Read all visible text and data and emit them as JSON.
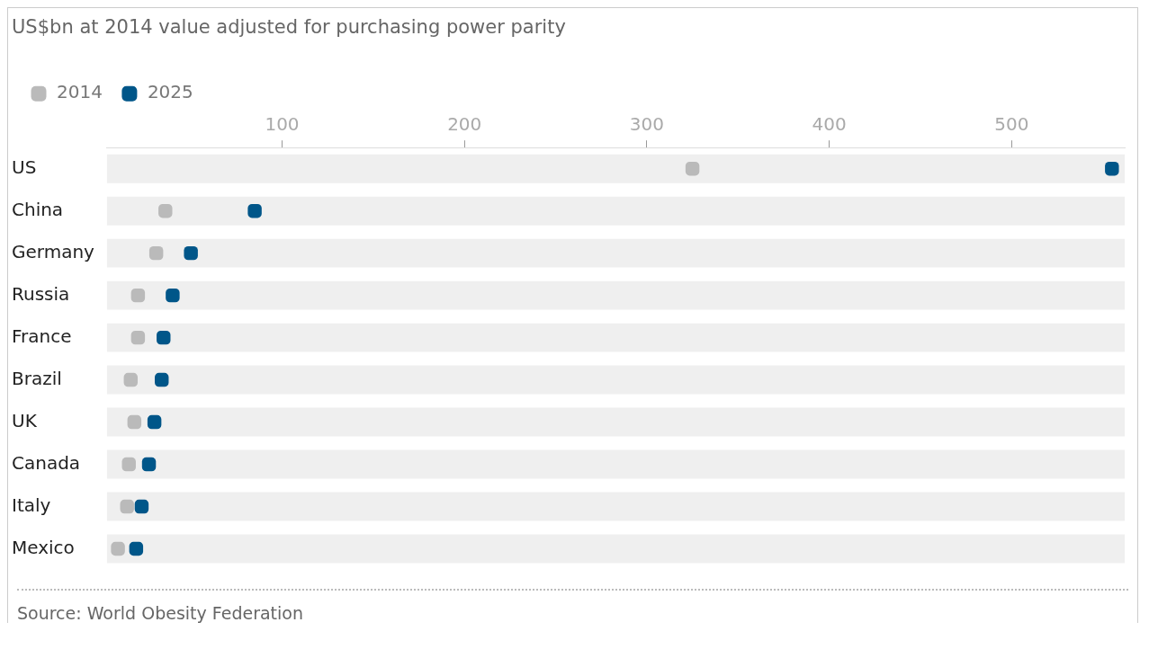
{
  "chart_data": {
    "type": "scatter",
    "orientation": "horizontal",
    "title": "US$bn at 2014 value adjusted for purchasing power parity",
    "categories": [
      "US",
      "China",
      "Germany",
      "Russia",
      "France",
      "Brazil",
      "UK",
      "Canada",
      "Italy",
      "Mexico"
    ],
    "series": [
      {
        "type": "bar",
        "color": "#efefef",
        "values": [
          562,
          562,
          562,
          562,
          562,
          562,
          562,
          562,
          562,
          562
        ]
      },
      {
        "name": "2014",
        "color": "#bababa",
        "values": [
          325,
          36,
          31,
          21,
          21,
          17,
          19,
          16,
          15,
          10
        ]
      },
      {
        "name": "2025",
        "color": "#005689",
        "values": [
          555,
          85,
          50,
          40,
          35,
          34,
          30,
          27,
          23,
          20
        ]
      }
    ],
    "xlim": [
      4,
      562
    ],
    "xticks": [
      100,
      200,
      300,
      400,
      500
    ],
    "legend": "top left",
    "marker": "square",
    "annotations": [
      "Source: World Obesity Federation"
    ]
  }
}
